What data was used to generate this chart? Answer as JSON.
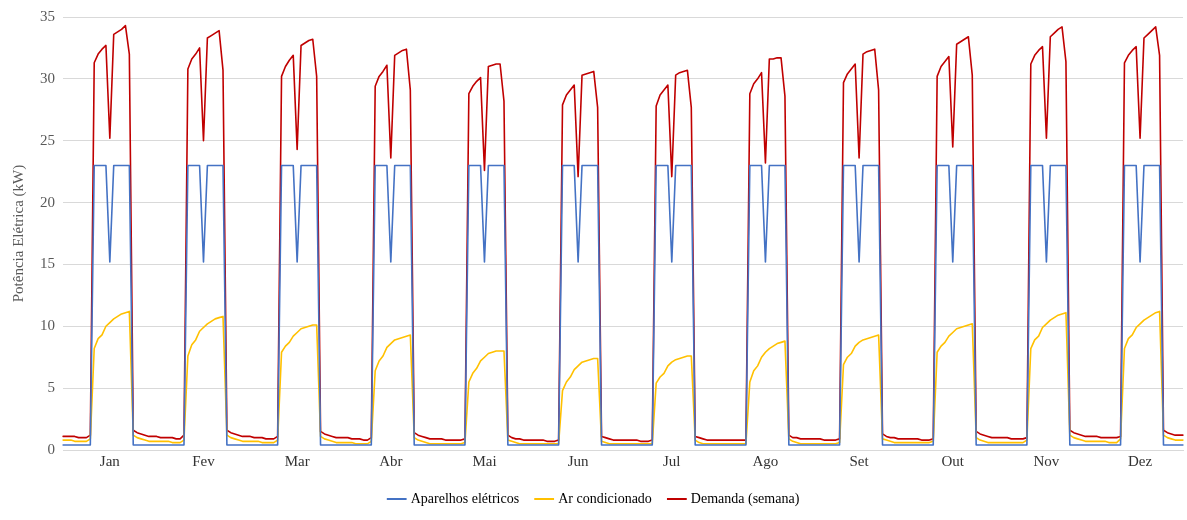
{
  "chart_data": {
    "type": "line",
    "ylabel": "Potência Elétrica (kW)",
    "categories": [
      null,
      null,
      null,
      null,
      null,
      null,
      null,
      null,
      null,
      null,
      null,
      null,
      "Jan",
      null,
      null,
      null,
      null,
      null,
      null,
      null,
      null,
      null,
      null,
      null,
      null,
      null,
      null,
      null,
      null,
      null,
      null,
      null,
      null,
      null,
      null,
      null,
      "Fev",
      null,
      null,
      null,
      null,
      null,
      null,
      null,
      null,
      null,
      null,
      null,
      null,
      null,
      null,
      null,
      null,
      null,
      null,
      null,
      null,
      null,
      null,
      null,
      "Mar",
      null,
      null,
      null,
      null,
      null,
      null,
      null,
      null,
      null,
      null,
      null,
      null,
      null,
      null,
      null,
      null,
      null,
      null,
      null,
      null,
      null,
      null,
      null,
      "Abr",
      null,
      null,
      null,
      null,
      null,
      null,
      null,
      null,
      null,
      null,
      null,
      null,
      null,
      null,
      null,
      null,
      null,
      null,
      null,
      null,
      null,
      null,
      null,
      "Mai",
      null,
      null,
      null,
      null,
      null,
      null,
      null,
      null,
      null,
      null,
      null,
      null,
      null,
      null,
      null,
      null,
      null,
      null,
      null,
      null,
      null,
      null,
      null,
      "Jun",
      null,
      null,
      null,
      null,
      null,
      null,
      null,
      null,
      null,
      null,
      null,
      null,
      null,
      null,
      null,
      null,
      null,
      null,
      null,
      null,
      null,
      null,
      null,
      "Jul",
      null,
      null,
      null,
      null,
      null,
      null,
      null,
      null,
      null,
      null,
      null,
      null,
      null,
      null,
      null,
      null,
      null,
      null,
      null,
      null,
      null,
      null,
      null,
      "Ago",
      null,
      null,
      null,
      null,
      null,
      null,
      null,
      null,
      null,
      null,
      null,
      null,
      null,
      null,
      null,
      null,
      null,
      null,
      null,
      null,
      null,
      null,
      null,
      "Set",
      null,
      null,
      null,
      null,
      null,
      null,
      null,
      null,
      null,
      null,
      null,
      null,
      null,
      null,
      null,
      null,
      null,
      null,
      null,
      null,
      null,
      null,
      null,
      "Out",
      null,
      null,
      null,
      null,
      null,
      null,
      null,
      null,
      null,
      null,
      null,
      null,
      null,
      null,
      null,
      null,
      null,
      null,
      null,
      null,
      null,
      null,
      null,
      "Nov",
      null,
      null,
      null,
      null,
      null,
      null,
      null,
      null,
      null,
      null,
      null,
      null,
      null,
      null,
      null,
      null,
      null,
      null,
      null,
      null,
      null,
      null,
      null,
      "Dez",
      null,
      null,
      null,
      null,
      null,
      null,
      null,
      null,
      null,
      null,
      null
    ],
    "ylim": [
      0,
      35
    ],
    "yticks": [
      0,
      5,
      10,
      15,
      20,
      25,
      30,
      35
    ],
    "grid": "y",
    "legend": "bottom",
    "marker": "none",
    "line_style": "solid",
    "series": [
      {
        "name": "Aparelhos elétricos",
        "color": "#4472c4",
        "values": [
          0.4,
          0.4,
          0.4,
          0.4,
          0.4,
          0.4,
          0.4,
          0.4,
          23,
          23,
          23,
          23,
          15.2,
          23,
          23,
          23,
          23,
          23,
          0.4,
          0.4,
          0.4,
          0.4,
          0.4,
          0.4,
          0.4,
          0.4,
          0.4,
          0.4,
          0.4,
          0.4,
          0.4,
          0.4,
          23,
          23,
          23,
          23,
          15.2,
          23,
          23,
          23,
          23,
          23,
          0.4,
          0.4,
          0.4,
          0.4,
          0.4,
          0.4,
          0.4,
          0.4,
          0.4,
          0.4,
          0.4,
          0.4,
          0.4,
          0.4,
          23,
          23,
          23,
          23,
          15.2,
          23,
          23,
          23,
          23,
          23,
          0.4,
          0.4,
          0.4,
          0.4,
          0.4,
          0.4,
          0.4,
          0.4,
          0.4,
          0.4,
          0.4,
          0.4,
          0.4,
          0.4,
          23,
          23,
          23,
          23,
          15.2,
          23,
          23,
          23,
          23,
          23,
          0.4,
          0.4,
          0.4,
          0.4,
          0.4,
          0.4,
          0.4,
          0.4,
          0.4,
          0.4,
          0.4,
          0.4,
          0.4,
          0.4,
          23,
          23,
          23,
          23,
          15.2,
          23,
          23,
          23,
          23,
          23,
          0.4,
          0.4,
          0.4,
          0.4,
          0.4,
          0.4,
          0.4,
          0.4,
          0.4,
          0.4,
          0.4,
          0.4,
          0.4,
          0.4,
          23,
          23,
          23,
          23,
          15.2,
          23,
          23,
          23,
          23,
          23,
          0.4,
          0.4,
          0.4,
          0.4,
          0.4,
          0.4,
          0.4,
          0.4,
          0.4,
          0.4,
          0.4,
          0.4,
          0.4,
          0.4,
          23,
          23,
          23,
          23,
          15.2,
          23,
          23,
          23,
          23,
          23,
          0.4,
          0.4,
          0.4,
          0.4,
          0.4,
          0.4,
          0.4,
          0.4,
          0.4,
          0.4,
          0.4,
          0.4,
          0.4,
          0.4,
          23,
          23,
          23,
          23,
          15.2,
          23,
          23,
          23,
          23,
          23,
          0.4,
          0.4,
          0.4,
          0.4,
          0.4,
          0.4,
          0.4,
          0.4,
          0.4,
          0.4,
          0.4,
          0.4,
          0.4,
          0.4,
          23,
          23,
          23,
          23,
          15.2,
          23,
          23,
          23,
          23,
          23,
          0.4,
          0.4,
          0.4,
          0.4,
          0.4,
          0.4,
          0.4,
          0.4,
          0.4,
          0.4,
          0.4,
          0.4,
          0.4,
          0.4,
          23,
          23,
          23,
          23,
          15.2,
          23,
          23,
          23,
          23,
          23,
          0.4,
          0.4,
          0.4,
          0.4,
          0.4,
          0.4,
          0.4,
          0.4,
          0.4,
          0.4,
          0.4,
          0.4,
          0.4,
          0.4,
          23,
          23,
          23,
          23,
          15.2,
          23,
          23,
          23,
          23,
          23,
          0.4,
          0.4,
          0.4,
          0.4,
          0.4,
          0.4,
          0.4,
          0.4,
          0.4,
          0.4,
          0.4,
          0.4,
          0.4,
          0.4,
          23,
          23,
          23,
          23,
          15.2,
          23,
          23,
          23,
          23,
          23,
          0.4,
          0.4,
          0.4,
          0.4,
          0.4,
          0.4
        ]
      },
      {
        "name": "Ar condicionado",
        "color": "#ffc000",
        "values": [
          0.8,
          0.8,
          0.8,
          0.7,
          0.7,
          0.7,
          0.7,
          0.9,
          8.2,
          9.0,
          9.3,
          10.0,
          10.3,
          10.6,
          10.8,
          11.0,
          11.1,
          11.2,
          1.2,
          1.0,
          0.9,
          0.8,
          0.7,
          0.7,
          0.7,
          0.7,
          0.7,
          0.7,
          0.6,
          0.6,
          0.6,
          0.8,
          7.6,
          8.5,
          8.9,
          9.6,
          9.9,
          10.2,
          10.4,
          10.6,
          10.7,
          10.8,
          1.2,
          1.0,
          0.9,
          0.8,
          0.7,
          0.7,
          0.7,
          0.7,
          0.7,
          0.6,
          0.6,
          0.6,
          0.6,
          0.8,
          7.9,
          8.4,
          8.7,
          9.2,
          9.5,
          9.8,
          9.9,
          10.0,
          10.1,
          10.1,
          1.1,
          0.9,
          0.8,
          0.7,
          0.6,
          0.6,
          0.6,
          0.6,
          0.6,
          0.5,
          0.5,
          0.5,
          0.5,
          0.7,
          6.4,
          7.2,
          7.6,
          8.3,
          8.6,
          8.9,
          9.0,
          9.1,
          9.2,
          9.3,
          1.0,
          0.8,
          0.7,
          0.6,
          0.5,
          0.5,
          0.5,
          0.5,
          0.5,
          0.5,
          0.5,
          0.5,
          0.5,
          0.6,
          5.5,
          6.2,
          6.6,
          7.2,
          7.5,
          7.8,
          7.9,
          8.0,
          8.0,
          8.0,
          0.8,
          0.7,
          0.6,
          0.5,
          0.5,
          0.5,
          0.5,
          0.5,
          0.5,
          0.5,
          0.5,
          0.5,
          0.5,
          0.5,
          4.8,
          5.5,
          5.9,
          6.5,
          6.8,
          7.1,
          7.2,
          7.3,
          7.4,
          7.4,
          0.7,
          0.6,
          0.5,
          0.5,
          0.5,
          0.5,
          0.5,
          0.5,
          0.5,
          0.5,
          0.5,
          0.5,
          0.5,
          0.5,
          5.4,
          5.9,
          6.2,
          6.8,
          7.1,
          7.3,
          7.4,
          7.5,
          7.6,
          7.6,
          0.8,
          0.6,
          0.5,
          0.5,
          0.5,
          0.5,
          0.5,
          0.5,
          0.5,
          0.5,
          0.5,
          0.5,
          0.5,
          0.5,
          5.5,
          6.4,
          6.8,
          7.5,
          7.9,
          8.2,
          8.4,
          8.6,
          8.7,
          8.8,
          0.9,
          0.7,
          0.6,
          0.5,
          0.5,
          0.5,
          0.5,
          0.5,
          0.5,
          0.5,
          0.5,
          0.5,
          0.5,
          0.6,
          6.9,
          7.5,
          7.8,
          8.4,
          8.7,
          8.9,
          9.0,
          9.1,
          9.2,
          9.3,
          0.9,
          0.8,
          0.7,
          0.6,
          0.6,
          0.6,
          0.6,
          0.6,
          0.6,
          0.6,
          0.6,
          0.6,
          0.6,
          0.7,
          7.9,
          8.4,
          8.7,
          9.2,
          9.5,
          9.8,
          9.9,
          10.0,
          10.1,
          10.2,
          1.0,
          0.8,
          0.7,
          0.6,
          0.6,
          0.6,
          0.6,
          0.6,
          0.6,
          0.6,
          0.6,
          0.6,
          0.6,
          0.8,
          8.2,
          8.9,
          9.2,
          9.9,
          10.2,
          10.5,
          10.7,
          10.9,
          11.0,
          11.1,
          1.2,
          1.0,
          0.9,
          0.8,
          0.7,
          0.7,
          0.7,
          0.7,
          0.7,
          0.7,
          0.6,
          0.6,
          0.6,
          0.9,
          8.2,
          9.0,
          9.3,
          9.9,
          10.2,
          10.5,
          10.7,
          10.9,
          11.1,
          11.2,
          1.2,
          1.0,
          0.9,
          0.8,
          0.8,
          0.8
        ]
      },
      {
        "name": "Demanda (semana)",
        "color": "#c00000",
        "values": [
          1.1,
          1.1,
          1.1,
          1.1,
          1.0,
          1.0,
          1.0,
          1.2,
          31.3,
          32.0,
          32.4,
          32.7,
          25.2,
          33.6,
          33.8,
          34.0,
          34.3,
          32.0,
          1.6,
          1.4,
          1.3,
          1.2,
          1.1,
          1.1,
          1.1,
          1.0,
          1.0,
          1.0,
          1.0,
          0.9,
          0.9,
          1.2,
          30.8,
          31.6,
          32.0,
          32.5,
          25.0,
          33.3,
          33.5,
          33.7,
          33.9,
          30.7,
          1.6,
          1.4,
          1.3,
          1.2,
          1.1,
          1.1,
          1.1,
          1.0,
          1.0,
          1.0,
          0.9,
          0.9,
          0.9,
          1.1,
          30.2,
          31.0,
          31.5,
          31.9,
          24.3,
          32.7,
          32.9,
          33.1,
          33.2,
          30.2,
          1.5,
          1.3,
          1.2,
          1.1,
          1.0,
          1.0,
          1.0,
          1.0,
          0.9,
          0.9,
          0.9,
          0.8,
          0.8,
          1.0,
          29.4,
          30.2,
          30.6,
          31.1,
          23.6,
          31.9,
          32.1,
          32.3,
          32.4,
          29.1,
          1.4,
          1.2,
          1.1,
          1.0,
          0.9,
          0.9,
          0.9,
          0.9,
          0.8,
          0.8,
          0.8,
          0.8,
          0.8,
          0.9,
          28.8,
          29.4,
          29.8,
          30.1,
          22.6,
          31.0,
          31.1,
          31.2,
          31.2,
          28.2,
          1.2,
          1.0,
          0.9,
          0.9,
          0.8,
          0.8,
          0.8,
          0.8,
          0.8,
          0.8,
          0.7,
          0.7,
          0.7,
          0.8,
          27.9,
          28.7,
          29.1,
          29.5,
          22.1,
          30.3,
          30.4,
          30.5,
          30.6,
          27.7,
          1.1,
          1.0,
          0.9,
          0.8,
          0.8,
          0.8,
          0.8,
          0.8,
          0.8,
          0.8,
          0.7,
          0.7,
          0.7,
          0.8,
          27.8,
          28.7,
          29.1,
          29.5,
          22.1,
          30.3,
          30.5,
          30.6,
          30.7,
          27.7,
          1.1,
          1.0,
          0.9,
          0.8,
          0.8,
          0.8,
          0.8,
          0.8,
          0.8,
          0.8,
          0.8,
          0.8,
          0.8,
          0.8,
          28.8,
          29.6,
          30.0,
          30.5,
          23.2,
          31.6,
          31.6,
          31.7,
          31.7,
          28.6,
          1.2,
          1.0,
          1.0,
          0.9,
          0.9,
          0.9,
          0.9,
          0.9,
          0.9,
          0.8,
          0.8,
          0.8,
          0.8,
          0.9,
          29.7,
          30.4,
          30.8,
          31.2,
          23.6,
          32.0,
          32.2,
          32.3,
          32.4,
          29.1,
          1.3,
          1.1,
          1.0,
          1.0,
          0.9,
          0.9,
          0.9,
          0.9,
          0.9,
          0.9,
          0.8,
          0.8,
          0.8,
          0.9,
          30.2,
          31.0,
          31.4,
          31.8,
          24.5,
          32.8,
          33.0,
          33.2,
          33.4,
          30.3,
          1.5,
          1.3,
          1.2,
          1.1,
          1.0,
          1.0,
          1.0,
          1.0,
          1.0,
          0.9,
          0.9,
          0.9,
          0.9,
          1.0,
          31.2,
          31.9,
          32.3,
          32.6,
          25.2,
          33.4,
          33.7,
          34.0,
          34.2,
          31.4,
          1.6,
          1.4,
          1.3,
          1.2,
          1.1,
          1.1,
          1.1,
          1.1,
          1.0,
          1.0,
          1.0,
          1.0,
          1.0,
          1.1,
          31.3,
          31.9,
          32.3,
          32.6,
          25.2,
          33.3,
          33.6,
          33.9,
          34.2,
          31.9,
          1.6,
          1.4,
          1.3,
          1.2,
          1.2,
          1.2
        ]
      }
    ]
  }
}
